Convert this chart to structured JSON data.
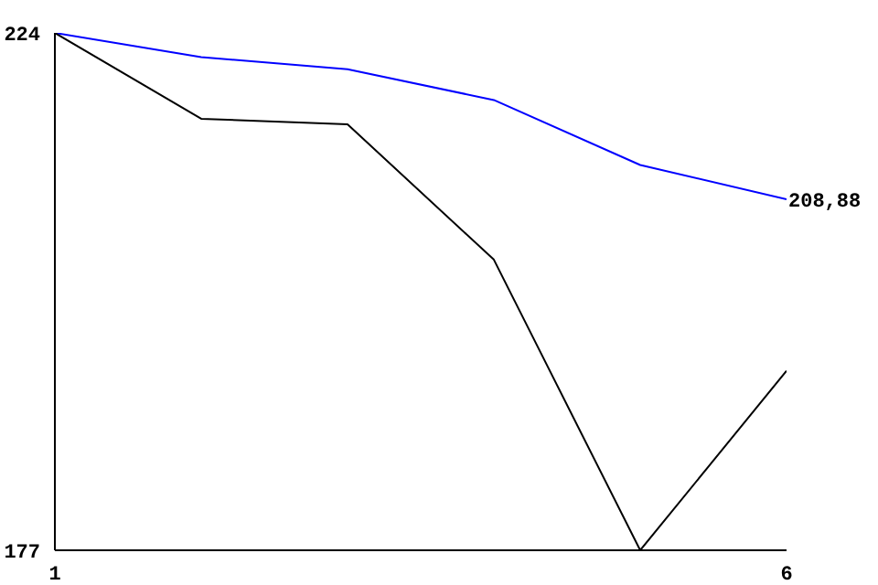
{
  "chart_data": {
    "type": "line",
    "x": [
      1,
      2,
      3,
      4,
      5,
      6
    ],
    "series": [
      {
        "color": "#0000ff",
        "values": [
          224,
          221.8,
          220.7,
          217.9,
          212,
          208.88
        ]
      },
      {
        "color": "#000000",
        "values": [
          224,
          216.2,
          215.7,
          203.4,
          177,
          193.3
        ]
      }
    ],
    "xlim": [
      1,
      6
    ],
    "ylim": [
      177,
      224
    ],
    "xticks": [
      1,
      6
    ],
    "yticks": [
      177,
      224
    ],
    "annotations": [
      {
        "text": "208,88",
        "x": 6,
        "y": 208.88
      }
    ],
    "marker": "none",
    "line_style": "solid",
    "grid": false,
    "legend": false
  }
}
